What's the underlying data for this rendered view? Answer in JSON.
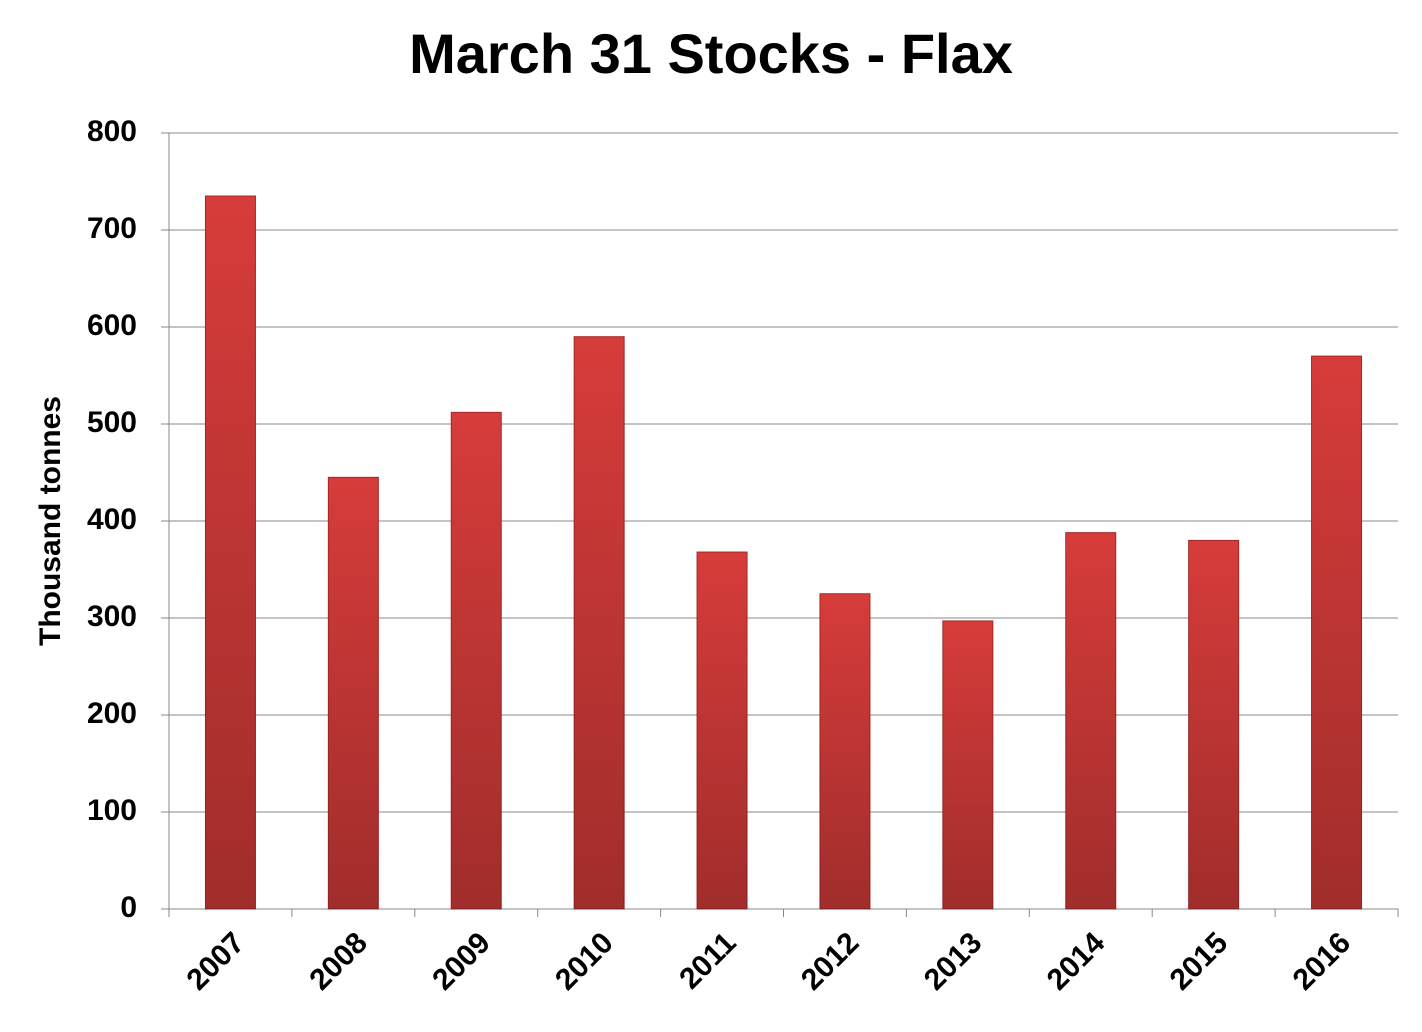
{
  "chart_data": {
    "type": "bar",
    "title": "March 31 Stocks - Flax",
    "y_label": "Thousand tonnes",
    "categories": [
      "2007",
      "2008",
      "2009",
      "2010",
      "2011",
      "2012",
      "2013",
      "2014",
      "2015",
      "2016"
    ],
    "values": [
      735,
      445,
      512,
      590,
      368,
      325,
      297,
      388,
      380,
      570
    ],
    "color": "#d63c3a",
    "ylim": [
      0,
      800
    ],
    "yticks": [
      0,
      100,
      200,
      300,
      400,
      500,
      600,
      700,
      800
    ],
    "grid": true
  }
}
